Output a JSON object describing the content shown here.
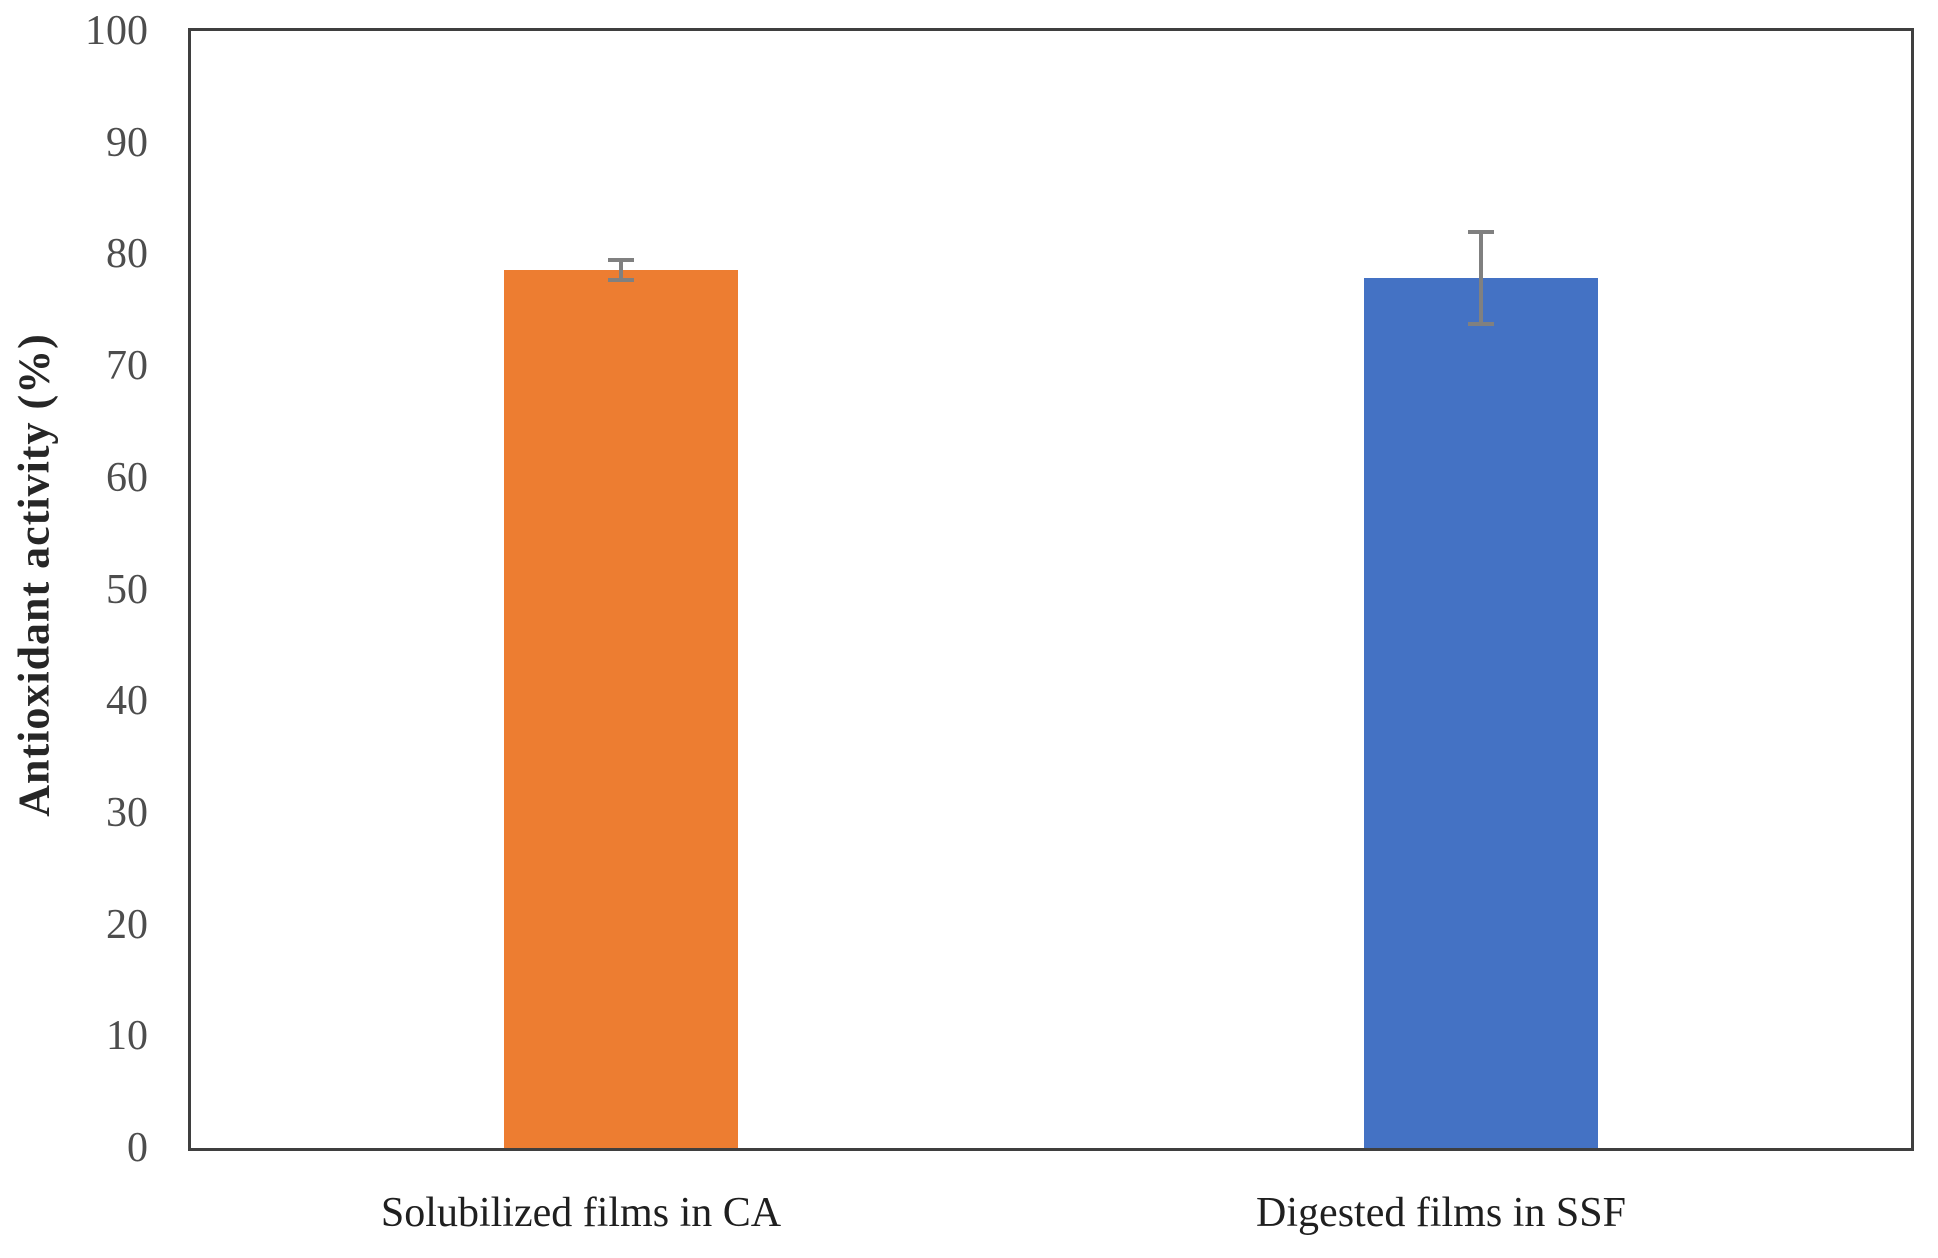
{
  "chart_data": {
    "type": "bar",
    "title": "",
    "xlabel": "",
    "ylabel": "Antioxidant activity (%)",
    "ylim": [
      0,
      100
    ],
    "ytick_step": 10,
    "yticks": [
      0,
      10,
      20,
      30,
      40,
      50,
      60,
      70,
      80,
      90,
      100
    ],
    "categories": [
      "Solubilized films in CA",
      "Digested films in SSF"
    ],
    "series": [
      {
        "name": "Antioxidant activity (%)",
        "values": [
          78.6,
          77.9
        ],
        "error_bars": [
          0.9,
          4.1
        ]
      }
    ],
    "bar_colors": [
      "#ED7D31",
      "#4472C4"
    ],
    "error_bar_color": "#808080",
    "axis_frame_color": "#3F3F3F",
    "grid": false,
    "legend": false
  }
}
